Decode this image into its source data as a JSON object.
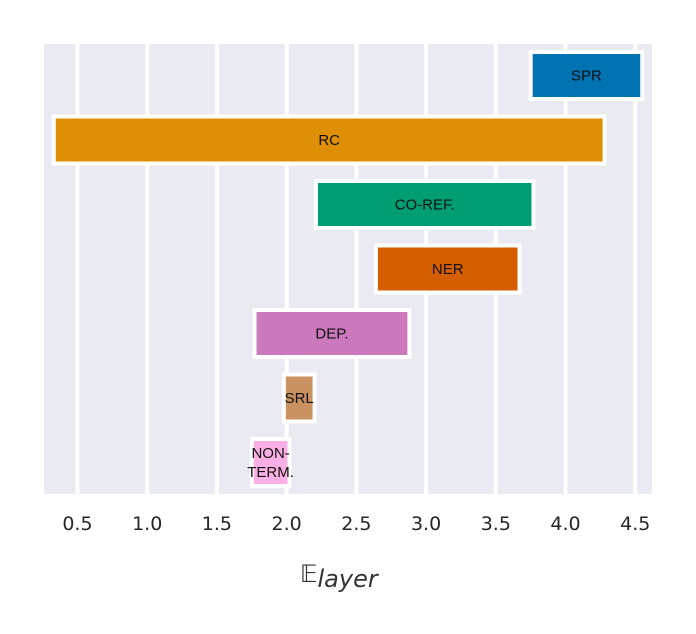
{
  "chart_data": {
    "type": "bar",
    "orientation": "horizontal-floating",
    "title": "",
    "xlabel": {
      "symbol": "𝔼",
      "subscript": "layer"
    },
    "ylabel": "",
    "xlim": [
      0.26,
      4.62
    ],
    "xticks": [
      "0.5",
      "1.0",
      "1.5",
      "2.0",
      "2.5",
      "3.0",
      "3.5",
      "4.0",
      "4.5"
    ],
    "grid": true,
    "background": "#eaeaf2",
    "series": [
      {
        "label": [
          "SPR"
        ],
        "start": 3.75,
        "end": 4.55,
        "color": "#0173b2"
      },
      {
        "label": [
          "RC"
        ],
        "start": 0.33,
        "end": 4.28,
        "color": "#de8f05"
      },
      {
        "label": [
          "CO-REF."
        ],
        "start": 2.21,
        "end": 3.77,
        "color": "#029e73"
      },
      {
        "label": [
          "NER"
        ],
        "start": 2.64,
        "end": 3.67,
        "color": "#d55e00"
      },
      {
        "label": [
          "DEP."
        ],
        "start": 1.77,
        "end": 2.88,
        "color": "#cc78bc"
      },
      {
        "label": [
          "SRL"
        ],
        "start": 1.98,
        "end": 2.2,
        "color": "#ca9161"
      },
      {
        "label": [
          "NON-",
          "TERM."
        ],
        "start": 1.75,
        "end": 2.02,
        "color": "#fbafe4"
      }
    ]
  }
}
